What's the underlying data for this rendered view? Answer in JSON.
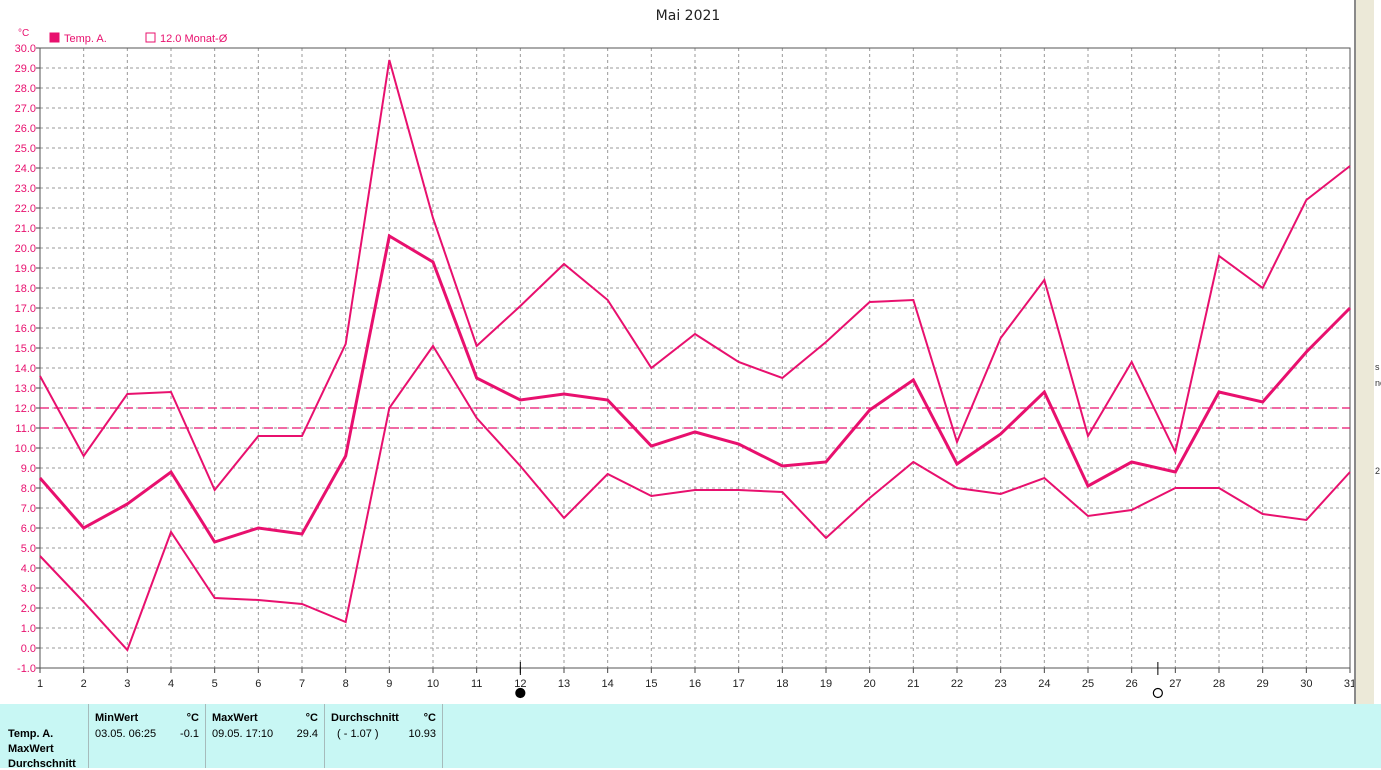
{
  "chart_data": {
    "type": "line",
    "title": "Mai 2021",
    "ylabel": "°C",
    "ylim": [
      -1.0,
      30.0
    ],
    "yticks": [
      "30.0",
      "29.0",
      "28.0",
      "27.0",
      "26.0",
      "25.0",
      "24.0",
      "23.0",
      "22.0",
      "21.0",
      "20.0",
      "19.0",
      "18.0",
      "17.0",
      "16.0",
      "15.0",
      "14.0",
      "13.0",
      "12.0",
      "11.0",
      "10.0",
      "9.0",
      "8.0",
      "7.0",
      "6.0",
      "5.0",
      "4.0",
      "3.0",
      "2.0",
      "1.0",
      "0.0",
      "-1.0"
    ],
    "x": [
      1,
      2,
      3,
      4,
      5,
      6,
      7,
      8,
      9,
      10,
      11,
      12,
      13,
      14,
      15,
      16,
      17,
      18,
      19,
      20,
      21,
      22,
      23,
      24,
      25,
      26,
      27,
      28,
      29,
      30,
      31
    ],
    "grid": true,
    "legend": [
      {
        "label": "Temp. A.",
        "filled": true
      },
      {
        "label": "12.0 Monat-Ø",
        "filled": false
      }
    ],
    "series": [
      {
        "name": "Temp. A.",
        "role": "max",
        "values": [
          13.6,
          9.6,
          12.7,
          12.8,
          7.9,
          10.6,
          10.6,
          15.2,
          29.4,
          21.5,
          15.1,
          17.1,
          19.2,
          17.4,
          14.0,
          15.7,
          14.3,
          13.5,
          15.3,
          17.3,
          17.4,
          10.3,
          15.5,
          18.4,
          10.6,
          14.3,
          9.8,
          19.6,
          18.0,
          22.4,
          24.1
        ]
      },
      {
        "name": "Temp. A.",
        "role": "avg",
        "values": [
          8.5,
          6.0,
          7.2,
          8.8,
          5.3,
          6.0,
          5.7,
          9.6,
          20.6,
          19.3,
          13.5,
          12.4,
          12.7,
          12.4,
          10.1,
          10.8,
          10.2,
          9.1,
          9.3,
          11.9,
          13.4,
          9.2,
          10.7,
          12.8,
          8.1,
          9.3,
          8.8,
          12.8,
          12.3,
          14.8,
          17.0
        ]
      },
      {
        "name": "Temp. A.",
        "role": "min",
        "values": [
          4.6,
          2.3,
          -0.1,
          5.8,
          2.5,
          2.4,
          2.2,
          1.3,
          12.0,
          15.1,
          11.5,
          9.1,
          6.5,
          8.7,
          7.6,
          7.9,
          7.9,
          7.8,
          5.5,
          7.5,
          9.3,
          8.0,
          7.7,
          8.5,
          6.6,
          6.9,
          8.0,
          8.0,
          6.7,
          6.4,
          8.8
        ]
      }
    ],
    "reference_lines": [
      {
        "name": "12.0 Monat-Ø",
        "value": 12.0,
        "style": "dashed"
      },
      {
        "value": 11.0,
        "style": "dashed"
      }
    ],
    "moon_phase_markers": [
      {
        "day": 12,
        "phase": "new-moon"
      },
      {
        "day": 26.6,
        "phase": "full-moon"
      }
    ]
  },
  "colors": {
    "series": "#e8106e",
    "grid": "#9a9a9a",
    "stats_bg": "#c8f7f4"
  },
  "stats": {
    "row_labels": [
      "Temp. A.",
      "MaxWert",
      "Durchschnitt"
    ],
    "min": {
      "header": "MinWert",
      "unit": "°C",
      "datetime": "03.05.  06:25",
      "value": "-0.1"
    },
    "max": {
      "header": "MaxWert",
      "unit": "°C",
      "datetime": "09.05.  17:10",
      "value": "29.4"
    },
    "avg": {
      "header": "Durchschnitt",
      "unit": "°C",
      "delta": "( - 1.07 )",
      "value": "10.93"
    }
  },
  "right_strip": {
    "snippets": [
      "s",
      "ne",
      "2"
    ]
  }
}
